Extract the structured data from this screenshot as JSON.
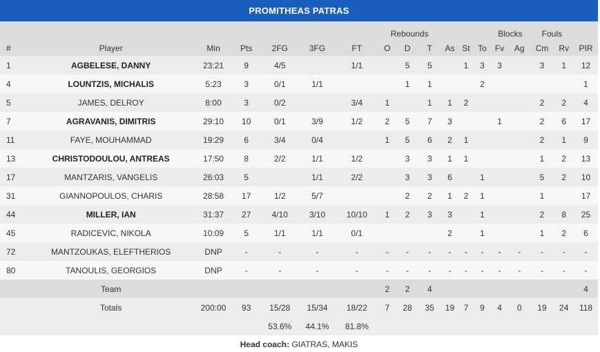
{
  "team_name": "PROMITHEAS PATRAS",
  "header_groups": {
    "rebounds": "Rebounds",
    "blocks": "Blocks",
    "fouls": "Fouls"
  },
  "columns": [
    "#",
    "Player",
    "Min",
    "Pts",
    "2FG",
    "3FG",
    "FT",
    "O",
    "D",
    "T",
    "As",
    "St",
    "To",
    "Fv",
    "Ag",
    "Cm",
    "Rv",
    "PIR"
  ],
  "players": [
    {
      "num": "1",
      "name": "AGBELESE, DANNY",
      "starter": true,
      "min": "23:21",
      "pts": "9",
      "fg2": "4/5",
      "fg3": "",
      "ft": "1/1",
      "o": "",
      "d": "5",
      "t": "5",
      "as": "",
      "st": "1",
      "to": "3",
      "fv": "3",
      "ag": "",
      "cm": "3",
      "rv": "1",
      "pir": "12"
    },
    {
      "num": "4",
      "name": "LOUNTZIS, MICHALIS",
      "starter": true,
      "min": "5:23",
      "pts": "3",
      "fg2": "0/1",
      "fg3": "1/1",
      "ft": "",
      "o": "",
      "d": "1",
      "t": "1",
      "as": "",
      "st": "",
      "to": "2",
      "fv": "",
      "ag": "",
      "cm": "",
      "rv": "",
      "pir": "1"
    },
    {
      "num": "5",
      "name": "JAMES, DELROY",
      "starter": false,
      "min": "8:00",
      "pts": "3",
      "fg2": "0/2",
      "fg3": "",
      "ft": "3/4",
      "o": "1",
      "d": "",
      "t": "1",
      "as": "1",
      "st": "2",
      "to": "",
      "fv": "",
      "ag": "",
      "cm": "2",
      "rv": "2",
      "pir": "4"
    },
    {
      "num": "7",
      "name": "AGRAVANIS, DIMITRIS",
      "starter": true,
      "min": "29:10",
      "pts": "10",
      "fg2": "0/1",
      "fg3": "3/9",
      "ft": "1/2",
      "o": "2",
      "d": "5",
      "t": "7",
      "as": "3",
      "st": "",
      "to": "",
      "fv": "1",
      "ag": "",
      "cm": "2",
      "rv": "6",
      "pir": "17"
    },
    {
      "num": "11",
      "name": "FAYE, MOUHAMMAD",
      "starter": false,
      "min": "19:29",
      "pts": "6",
      "fg2": "3/4",
      "fg3": "0/4",
      "ft": "",
      "o": "1",
      "d": "5",
      "t": "6",
      "as": "2",
      "st": "1",
      "to": "",
      "fv": "",
      "ag": "",
      "cm": "2",
      "rv": "1",
      "pir": "9"
    },
    {
      "num": "13",
      "name": "CHRISTODOULOU, ANTREAS",
      "starter": true,
      "min": "17:50",
      "pts": "8",
      "fg2": "2/2",
      "fg3": "1/1",
      "ft": "1/2",
      "o": "",
      "d": "3",
      "t": "3",
      "as": "1",
      "st": "1",
      "to": "",
      "fv": "",
      "ag": "",
      "cm": "1",
      "rv": "2",
      "pir": "13"
    },
    {
      "num": "17",
      "name": "MANTZARIS, VANGELIS",
      "starter": false,
      "min": "26:03",
      "pts": "5",
      "fg2": "",
      "fg3": "1/1",
      "ft": "2/2",
      "o": "",
      "d": "3",
      "t": "3",
      "as": "6",
      "st": "",
      "to": "1",
      "fv": "",
      "ag": "",
      "cm": "5",
      "rv": "2",
      "pir": "10"
    },
    {
      "num": "31",
      "name": "GIANNOPOULOS, CHARIS",
      "starter": false,
      "min": "28:58",
      "pts": "17",
      "fg2": "1/2",
      "fg3": "5/7",
      "ft": "",
      "o": "",
      "d": "2",
      "t": "2",
      "as": "1",
      "st": "2",
      "to": "1",
      "fv": "",
      "ag": "",
      "cm": "1",
      "rv": "",
      "pir": "17"
    },
    {
      "num": "44",
      "name": "MILLER, IAN",
      "starter": true,
      "min": "31:37",
      "pts": "27",
      "fg2": "4/10",
      "fg3": "3/10",
      "ft": "10/10",
      "o": "1",
      "d": "2",
      "t": "3",
      "as": "3",
      "st": "",
      "to": "1",
      "fv": "",
      "ag": "",
      "cm": "2",
      "rv": "8",
      "pir": "25"
    },
    {
      "num": "45",
      "name": "RADICEVIC, NIKOLA",
      "starter": false,
      "min": "10:09",
      "pts": "5",
      "fg2": "1/1",
      "fg3": "1/1",
      "ft": "0/1",
      "o": "",
      "d": "",
      "t": "",
      "as": "2",
      "st": "",
      "to": "1",
      "fv": "",
      "ag": "",
      "cm": "1",
      "rv": "2",
      "pir": "6"
    },
    {
      "num": "72",
      "name": "MANTZOUKAS, ELEFTHERIOS",
      "starter": false,
      "min": "DNP",
      "pts": "-",
      "fg2": "-",
      "fg3": "-",
      "ft": "-",
      "o": "-",
      "d": "-",
      "t": "-",
      "as": "-",
      "st": "-",
      "to": "-",
      "fv": "-",
      "ag": "-",
      "cm": "-",
      "rv": "-",
      "pir": "-"
    },
    {
      "num": "80",
      "name": "TANOULIS, GEORGIOS",
      "starter": false,
      "min": "DNP",
      "pts": "-",
      "fg2": "-",
      "fg3": "-",
      "ft": "-",
      "o": "-",
      "d": "-",
      "t": "-",
      "as": "-",
      "st": "-",
      "to": "-",
      "fv": "-",
      "ag": "-",
      "cm": "-",
      "rv": "-",
      "pir": "-"
    }
  ],
  "team_row": {
    "label": "Team",
    "o": "2",
    "d": "2",
    "t": "4",
    "pir": "4"
  },
  "totals": {
    "label": "Totals",
    "min": "200:00",
    "pts": "93",
    "fg2": "15/28",
    "fg3": "15/34",
    "ft": "18/22",
    "o": "7",
    "d": "28",
    "t": "35",
    "as": "19",
    "st": "7",
    "to": "9",
    "fv": "4",
    "ag": "0",
    "cm": "19",
    "rv": "24",
    "pir": "118"
  },
  "percentages": {
    "fg2": "53.6%",
    "fg3": "44.1%",
    "ft": "81.8%"
  },
  "coach": {
    "label": "Head coach:",
    "name": "GIATRAS, MAKIS"
  }
}
